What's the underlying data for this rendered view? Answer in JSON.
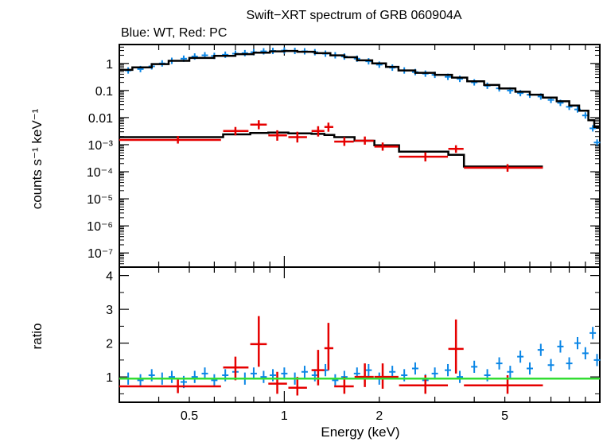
{
  "chart_data": [
    {
      "type": "scatter",
      "title": "Swift−XRT spectrum of GRB 060904A",
      "subtitle": "Blue: WT, Red: PC",
      "ylabel": "counts s⁻¹ keV⁻¹",
      "xlabel": "",
      "xscale": "log",
      "yscale": "log",
      "xlim": [
        0.3,
        10
      ],
      "ylim": [
        3e-08,
        5
      ],
      "y_ticks": [
        {
          "value": 1,
          "label": "1"
        },
        {
          "value": 0.1,
          "label": "0.1"
        },
        {
          "value": 0.01,
          "label": "0.01"
        },
        {
          "value": 0.001,
          "label": "10⁻³"
        },
        {
          "value": 0.0001,
          "label": "10⁻⁴"
        },
        {
          "value": 1e-05,
          "label": "10⁻⁵"
        },
        {
          "value": 1e-06,
          "label": "10⁻⁶"
        },
        {
          "value": 1e-07,
          "label": "10⁻⁷"
        }
      ],
      "series": [
        {
          "color": "#0a86e6",
          "points": [
            [
              0.32,
              0.55
            ],
            [
              0.35,
              0.62
            ],
            [
              0.38,
              0.78
            ],
            [
              0.41,
              1.0
            ],
            [
              0.44,
              1.25
            ],
            [
              0.48,
              1.5
            ],
            [
              0.52,
              1.8
            ],
            [
              0.56,
              2.0
            ],
            [
              0.6,
              1.9
            ],
            [
              0.65,
              2.1
            ],
            [
              0.7,
              2.3
            ],
            [
              0.75,
              2.4
            ],
            [
              0.8,
              2.6
            ],
            [
              0.86,
              2.8
            ],
            [
              0.92,
              2.9
            ],
            [
              1.0,
              3.0
            ],
            [
              1.08,
              2.9
            ],
            [
              1.16,
              2.8
            ],
            [
              1.25,
              2.6
            ],
            [
              1.35,
              2.3
            ],
            [
              1.45,
              2.0
            ],
            [
              1.55,
              1.8
            ],
            [
              1.7,
              1.5
            ],
            [
              1.85,
              1.2
            ],
            [
              2.0,
              0.9
            ],
            [
              2.2,
              0.7
            ],
            [
              2.4,
              0.55
            ],
            [
              2.6,
              0.48
            ],
            [
              2.8,
              0.42
            ],
            [
              3.0,
              0.38
            ],
            [
              3.3,
              0.32
            ],
            [
              3.6,
              0.27
            ],
            [
              4.0,
              0.2
            ],
            [
              4.4,
              0.15
            ],
            [
              4.8,
              0.12
            ],
            [
              5.2,
              0.1
            ],
            [
              5.6,
              0.08
            ],
            [
              6.0,
              0.07
            ],
            [
              6.5,
              0.06
            ],
            [
              7.0,
              0.045
            ],
            [
              7.5,
              0.035
            ],
            [
              8.0,
              0.025
            ],
            [
              8.5,
              0.02
            ],
            [
              9.0,
              0.012
            ],
            [
              9.5,
              0.004
            ],
            [
              9.8,
              0.0012
            ]
          ]
        },
        {
          "color": "#e60000",
          "points": [
            {
              "x": 0.46,
              "xlo": 0.3,
              "xhi": 0.63,
              "y": 0.0015,
              "ylo": 0.0011,
              "yhi": 0.0021
            },
            {
              "x": 0.7,
              "xlo": 0.64,
              "xhi": 0.77,
              "y": 0.0032,
              "ylo": 0.0022,
              "yhi": 0.0045
            },
            {
              "x": 0.83,
              "xlo": 0.78,
              "xhi": 0.88,
              "y": 0.0055,
              "ylo": 0.0037,
              "yhi": 0.008
            },
            {
              "x": 0.95,
              "xlo": 0.89,
              "xhi": 1.02,
              "y": 0.0022,
              "ylo": 0.0014,
              "yhi": 0.0034
            },
            {
              "x": 1.1,
              "xlo": 1.03,
              "xhi": 1.18,
              "y": 0.0019,
              "ylo": 0.0012,
              "yhi": 0.003
            },
            {
              "x": 1.28,
              "xlo": 1.22,
              "xhi": 1.34,
              "y": 0.0032,
              "ylo": 0.002,
              "yhi": 0.0048
            },
            {
              "x": 1.38,
              "xlo": 1.34,
              "xhi": 1.43,
              "y": 0.0045,
              "ylo": 0.003,
              "yhi": 0.0065
            },
            {
              "x": 1.55,
              "xlo": 1.44,
              "xhi": 1.66,
              "y": 0.0013,
              "ylo": 0.0009,
              "yhi": 0.0019
            },
            {
              "x": 1.8,
              "xlo": 1.67,
              "xhi": 1.92,
              "y": 0.0014,
              "ylo": 0.001,
              "yhi": 0.002
            },
            {
              "x": 2.05,
              "xlo": 1.93,
              "xhi": 2.3,
              "y": 0.00085,
              "ylo": 0.0006,
              "yhi": 0.0012
            },
            {
              "x": 2.8,
              "xlo": 2.31,
              "xhi": 3.3,
              "y": 0.00036,
              "ylo": 0.00024,
              "yhi": 0.00052
            },
            {
              "x": 3.5,
              "xlo": 3.31,
              "xhi": 3.7,
              "y": 0.0007,
              "ylo": 0.0005,
              "yhi": 0.00095
            },
            {
              "x": 5.1,
              "xlo": 3.71,
              "xhi": 6.6,
              "y": 0.00014,
              "ylo": 0.0001,
              "yhi": 0.00019
            }
          ]
        }
      ],
      "model_wt": [
        [
          0.3,
          0.58
        ],
        [
          0.33,
          0.58
        ],
        [
          0.33,
          0.72
        ],
        [
          0.38,
          0.72
        ],
        [
          0.38,
          0.95
        ],
        [
          0.43,
          0.95
        ],
        [
          0.43,
          1.25
        ],
        [
          0.5,
          1.25
        ],
        [
          0.5,
          1.6
        ],
        [
          0.6,
          1.6
        ],
        [
          0.6,
          1.9
        ],
        [
          0.7,
          1.9
        ],
        [
          0.7,
          2.2
        ],
        [
          0.8,
          2.2
        ],
        [
          0.8,
          2.5
        ],
        [
          0.9,
          2.5
        ],
        [
          0.9,
          2.8
        ],
        [
          1.0,
          2.8
        ],
        [
          1.0,
          2.9
        ],
        [
          1.1,
          2.9
        ],
        [
          1.1,
          2.7
        ],
        [
          1.25,
          2.7
        ],
        [
          1.25,
          2.4
        ],
        [
          1.4,
          2.4
        ],
        [
          1.4,
          2.0
        ],
        [
          1.55,
          2.0
        ],
        [
          1.55,
          1.7
        ],
        [
          1.7,
          1.7
        ],
        [
          1.7,
          1.3
        ],
        [
          1.9,
          1.3
        ],
        [
          1.9,
          1.0
        ],
        [
          2.1,
          1.0
        ],
        [
          2.1,
          0.75
        ],
        [
          2.3,
          0.75
        ],
        [
          2.3,
          0.55
        ],
        [
          2.6,
          0.55
        ],
        [
          2.6,
          0.45
        ],
        [
          3.0,
          0.45
        ],
        [
          3.0,
          0.38
        ],
        [
          3.4,
          0.38
        ],
        [
          3.4,
          0.3
        ],
        [
          3.8,
          0.3
        ],
        [
          3.8,
          0.22
        ],
        [
          4.3,
          0.22
        ],
        [
          4.3,
          0.16
        ],
        [
          4.8,
          0.16
        ],
        [
          4.8,
          0.12
        ],
        [
          5.4,
          0.12
        ],
        [
          5.4,
          0.09
        ],
        [
          6.0,
          0.09
        ],
        [
          6.0,
          0.07
        ],
        [
          6.6,
          0.07
        ],
        [
          6.6,
          0.055
        ],
        [
          7.3,
          0.055
        ],
        [
          7.3,
          0.04
        ],
        [
          8.0,
          0.04
        ],
        [
          8.0,
          0.028
        ],
        [
          8.6,
          0.028
        ],
        [
          8.6,
          0.018
        ],
        [
          9.2,
          0.018
        ],
        [
          9.2,
          0.008
        ],
        [
          9.6,
          0.008
        ],
        [
          9.6,
          0.0045
        ],
        [
          10.0,
          0.0045
        ]
      ],
      "model_pc": [
        [
          0.3,
          0.0019
        ],
        [
          0.64,
          0.0019
        ],
        [
          0.64,
          0.0024
        ],
        [
          0.78,
          0.0024
        ],
        [
          0.78,
          0.0027
        ],
        [
          0.89,
          0.0027
        ],
        [
          0.89,
          0.0028
        ],
        [
          1.03,
          0.0028
        ],
        [
          1.03,
          0.0026
        ],
        [
          1.22,
          0.0026
        ],
        [
          1.22,
          0.0025
        ],
        [
          1.34,
          0.0025
        ],
        [
          1.34,
          0.0023
        ],
        [
          1.44,
          0.0023
        ],
        [
          1.44,
          0.0019
        ],
        [
          1.67,
          0.0019
        ],
        [
          1.67,
          0.0014
        ],
        [
          1.93,
          0.0014
        ],
        [
          1.93,
          0.00095
        ],
        [
          2.31,
          0.00095
        ],
        [
          2.31,
          0.00055
        ],
        [
          3.31,
          0.00055
        ],
        [
          3.31,
          0.00042
        ],
        [
          3.71,
          0.00042
        ],
        [
          3.71,
          0.000155
        ],
        [
          6.6,
          0.000155
        ]
      ]
    },
    {
      "type": "scatter",
      "ylabel": "ratio",
      "xlabel": "Energy (keV)",
      "xscale": "log",
      "yscale": "linear",
      "xlim": [
        0.3,
        10
      ],
      "ylim": [
        0.25,
        4.25
      ],
      "x_ticks": [
        {
          "value": 0.5,
          "label": "0.5"
        },
        {
          "value": 1,
          "label": "1"
        },
        {
          "value": 2,
          "label": "2"
        },
        {
          "value": 5,
          "label": "5"
        }
      ],
      "y_ticks": [
        {
          "value": 1,
          "label": "1"
        },
        {
          "value": 2,
          "label": "2"
        },
        {
          "value": 3,
          "label": "3"
        },
        {
          "value": 4,
          "label": "4"
        }
      ],
      "reference_line": {
        "value": 0.95,
        "color": "#33dd33"
      },
      "series": [
        {
          "color": "#0a86e6",
          "points": [
            [
              0.32,
              0.95
            ],
            [
              0.35,
              0.9
            ],
            [
              0.38,
              1.05
            ],
            [
              0.41,
              0.95
            ],
            [
              0.44,
              1.0
            ],
            [
              0.48,
              0.85
            ],
            [
              0.52,
              1.0
            ],
            [
              0.56,
              1.1
            ],
            [
              0.6,
              0.9
            ],
            [
              0.65,
              1.05
            ],
            [
              0.7,
              1.15
            ],
            [
              0.75,
              0.95
            ],
            [
              0.8,
              1.1
            ],
            [
              0.86,
              1.0
            ],
            [
              0.92,
              1.05
            ],
            [
              1.0,
              1.1
            ],
            [
              1.08,
              0.95
            ],
            [
              1.16,
              1.15
            ],
            [
              1.25,
              1.05
            ],
            [
              1.35,
              1.2
            ],
            [
              1.45,
              0.9
            ],
            [
              1.55,
              1.0
            ],
            [
              1.7,
              1.1
            ],
            [
              1.85,
              1.2
            ],
            [
              2.0,
              0.95
            ],
            [
              2.2,
              1.15
            ],
            [
              2.4,
              1.05
            ],
            [
              2.6,
              1.25
            ],
            [
              2.8,
              0.9
            ],
            [
              3.0,
              1.1
            ],
            [
              3.3,
              1.2
            ],
            [
              3.6,
              1.0
            ],
            [
              4.0,
              1.3
            ],
            [
              4.4,
              1.05
            ],
            [
              4.8,
              1.4
            ],
            [
              5.2,
              1.15
            ],
            [
              5.6,
              1.6
            ],
            [
              6.0,
              1.25
            ],
            [
              6.5,
              1.8
            ],
            [
              7.0,
              1.35
            ],
            [
              7.5,
              1.9
            ],
            [
              8.0,
              1.4
            ],
            [
              8.5,
              2.0
            ],
            [
              9.0,
              1.7
            ],
            [
              9.5,
              2.3
            ],
            [
              9.8,
              1.5
            ]
          ]
        },
        {
          "color": "#e60000",
          "points": [
            {
              "x": 0.46,
              "xlo": 0.3,
              "xhi": 0.63,
              "y": 0.72,
              "ylo": 0.52,
              "yhi": 0.92
            },
            {
              "x": 0.7,
              "xlo": 0.64,
              "xhi": 0.77,
              "y": 1.28,
              "ylo": 0.9,
              "yhi": 1.6
            },
            {
              "x": 0.83,
              "xlo": 0.78,
              "xhi": 0.88,
              "y": 1.97,
              "ylo": 1.3,
              "yhi": 2.8
            },
            {
              "x": 0.95,
              "xlo": 0.89,
              "xhi": 1.02,
              "y": 0.8,
              "ylo": 0.5,
              "yhi": 1.15
            },
            {
              "x": 1.1,
              "xlo": 1.03,
              "xhi": 1.18,
              "y": 0.68,
              "ylo": 0.45,
              "yhi": 1.0
            },
            {
              "x": 1.28,
              "xlo": 1.22,
              "xhi": 1.34,
              "y": 1.2,
              "ylo": 0.75,
              "yhi": 1.8
            },
            {
              "x": 1.38,
              "xlo": 1.34,
              "xhi": 1.43,
              "y": 1.85,
              "ylo": 1.2,
              "yhi": 2.6
            },
            {
              "x": 1.55,
              "xlo": 1.44,
              "xhi": 1.66,
              "y": 0.72,
              "ylo": 0.5,
              "yhi": 1.0
            },
            {
              "x": 1.8,
              "xlo": 1.67,
              "xhi": 1.92,
              "y": 1.0,
              "ylo": 0.7,
              "yhi": 1.4
            },
            {
              "x": 2.05,
              "xlo": 1.93,
              "xhi": 2.3,
              "y": 1.0,
              "ylo": 0.65,
              "yhi": 1.4
            },
            {
              "x": 2.8,
              "xlo": 2.31,
              "xhi": 3.3,
              "y": 0.75,
              "ylo": 0.5,
              "yhi": 1.05
            },
            {
              "x": 3.5,
              "xlo": 3.31,
              "xhi": 3.7,
              "y": 1.83,
              "ylo": 1.1,
              "yhi": 2.7
            },
            {
              "x": 5.1,
              "xlo": 3.71,
              "xhi": 6.6,
              "y": 0.75,
              "ylo": 0.5,
              "yhi": 1.05
            }
          ]
        }
      ]
    }
  ]
}
